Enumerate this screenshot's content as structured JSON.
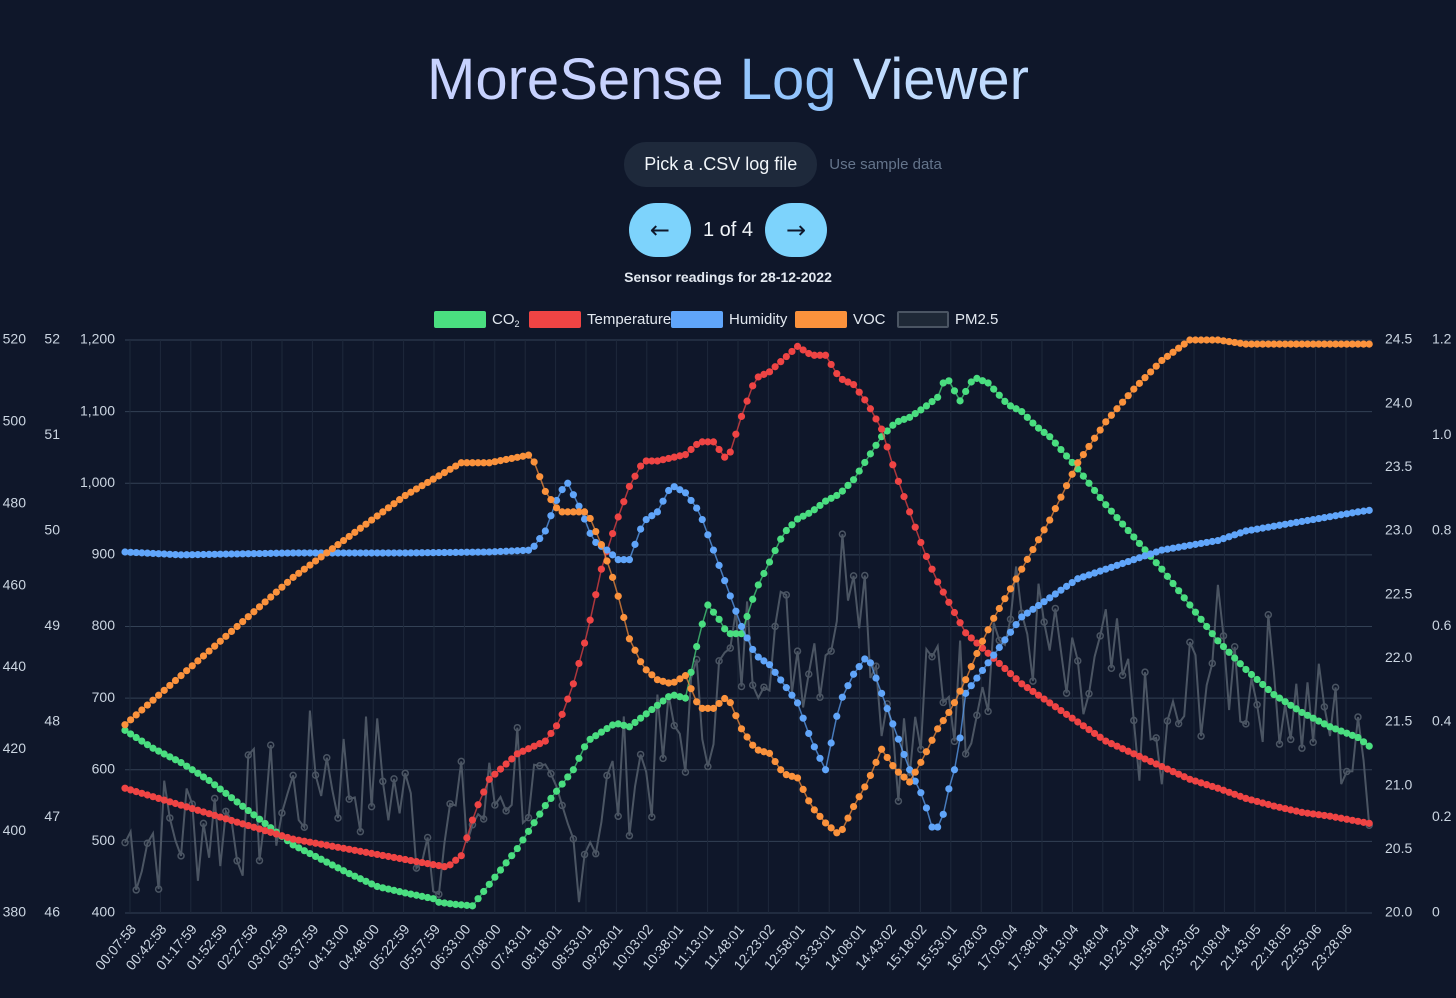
{
  "header": {
    "title_part1": "MoreSense",
    "title_part2": "Log",
    "title_part3": "Viewer"
  },
  "controls": {
    "pick_file_label": "Pick a .CSV log file",
    "sample_label": "Use sample data",
    "prev_label": "←",
    "next_label": "→",
    "page_label": "1 of 4"
  },
  "colors": {
    "background": "#0f172a",
    "co2": "#4ade80",
    "temperature": "#ef4444",
    "humidity": "#60a5fa",
    "voc": "#fb923c",
    "pm25": "#6b7280"
  },
  "chart_data": {
    "type": "line",
    "title": "Sensor readings for 28-12-2022",
    "xlabels": [
      "00:07:58",
      "00:42:58",
      "01:17:59",
      "01:52:59",
      "02:27:58",
      "03:02:59",
      "03:37:59",
      "04:13:00",
      "04:48:00",
      "05:22:59",
      "05:57:59",
      "06:33:00",
      "07:08:00",
      "07:43:01",
      "08:18:01",
      "08:53:01",
      "09:28:01",
      "10:03:02",
      "10:38:01",
      "11:13:01",
      "11:48:01",
      "12:23:02",
      "12:58:01",
      "13:33:01",
      "14:08:01",
      "14:43:02",
      "15:18:02",
      "15:53:01",
      "16:28:03",
      "17:03:04",
      "17:38:04",
      "18:13:04",
      "18:48:04",
      "19:23:04",
      "19:58:04",
      "20:33:05",
      "21:08:04",
      "21:43:05",
      "22:18:05",
      "22:53:06",
      "23:28:06"
    ],
    "legend_position": "top",
    "grid": true,
    "axes": {
      "co2": {
        "position": "left",
        "min": 400,
        "max": 1200,
        "ticks": [
          "400",
          "500",
          "600",
          "700",
          "800",
          "900",
          "1,000",
          "1,100",
          "1,200"
        ]
      },
      "humidity": {
        "position": "left",
        "min": 46,
        "max": 52,
        "ticks": [
          "46",
          "47",
          "48",
          "49",
          "50",
          "51",
          "52"
        ]
      },
      "voc": {
        "position": "left",
        "min": 380,
        "max": 520,
        "ticks": [
          "380",
          "400",
          "420",
          "440",
          "460",
          "480",
          "500",
          "520"
        ]
      },
      "temperature": {
        "position": "right",
        "min": 20.0,
        "max": 24.5,
        "ticks": [
          "20.0",
          "20.5",
          "21.0",
          "21.5",
          "22.0",
          "22.5",
          "23.0",
          "23.5",
          "24.0",
          "24.5"
        ]
      },
      "pm25": {
        "position": "right",
        "min": 0,
        "max": 1.2,
        "ticks": [
          "0",
          "0.2",
          "0.4",
          "0.6",
          "0.8",
          "1.0",
          "1.2"
        ]
      }
    },
    "series": [
      {
        "key": "co2",
        "name": "CO₂",
        "axis": "co2",
        "points": [
          [
            0,
            655
          ],
          [
            10,
            630
          ],
          [
            20,
            610
          ],
          [
            30,
            585
          ],
          [
            40,
            555
          ],
          [
            50,
            525
          ],
          [
            60,
            495
          ],
          [
            70,
            475
          ],
          [
            80,
            455
          ],
          [
            90,
            437
          ],
          [
            100,
            428
          ],
          [
            110,
            420
          ],
          [
            112,
            415
          ],
          [
            118,
            412
          ],
          [
            124,
            410
          ],
          [
            130,
            440
          ],
          [
            140,
            490
          ],
          [
            150,
            550
          ],
          [
            160,
            600
          ],
          [
            165,
            640
          ],
          [
            175,
            665
          ],
          [
            180,
            660
          ],
          [
            190,
            690
          ],
          [
            195,
            705
          ],
          [
            200,
            700
          ],
          [
            205,
            790
          ],
          [
            208,
            830
          ],
          [
            212,
            810
          ],
          [
            215,
            790
          ],
          [
            220,
            790
          ],
          [
            225,
            850
          ],
          [
            230,
            890
          ],
          [
            235,
            930
          ],
          [
            240,
            950
          ],
          [
            245,
            960
          ],
          [
            250,
            975
          ],
          [
            255,
            985
          ],
          [
            260,
            1005
          ],
          [
            265,
            1035
          ],
          [
            270,
            1065
          ],
          [
            275,
            1085
          ],
          [
            280,
            1092
          ],
          [
            285,
            1105
          ],
          [
            290,
            1120
          ],
          [
            293,
            1150
          ],
          [
            298,
            1115
          ],
          [
            303,
            1148
          ],
          [
            308,
            1140
          ],
          [
            315,
            1110
          ],
          [
            320,
            1100
          ],
          [
            325,
            1080
          ],
          [
            330,
            1065
          ],
          [
            340,
            1020
          ],
          [
            350,
            970
          ],
          [
            360,
            925
          ],
          [
            370,
            880
          ],
          [
            380,
            830
          ],
          [
            390,
            780
          ],
          [
            400,
            740
          ],
          [
            410,
            705
          ],
          [
            420,
            680
          ],
          [
            430,
            660
          ],
          [
            440,
            645
          ],
          [
            445,
            630
          ]
        ]
      },
      {
        "key": "temperature",
        "name": "Temperature",
        "axis": "temperature",
        "points": [
          [
            0,
            20.98
          ],
          [
            15,
            20.88
          ],
          [
            30,
            20.78
          ],
          [
            45,
            20.68
          ],
          [
            60,
            20.58
          ],
          [
            75,
            20.52
          ],
          [
            90,
            20.46
          ],
          [
            100,
            20.42
          ],
          [
            110,
            20.38
          ],
          [
            115,
            20.36
          ],
          [
            120,
            20.45
          ],
          [
            125,
            20.8
          ],
          [
            130,
            21.05
          ],
          [
            140,
            21.25
          ],
          [
            150,
            21.35
          ],
          [
            155,
            21.5
          ],
          [
            160,
            21.8
          ],
          [
            165,
            22.2
          ],
          [
            170,
            22.7
          ],
          [
            175,
            23.05
          ],
          [
            180,
            23.35
          ],
          [
            185,
            23.55
          ],
          [
            190,
            23.55
          ],
          [
            200,
            23.6
          ],
          [
            205,
            23.7
          ],
          [
            210,
            23.7
          ],
          [
            215,
            23.55
          ],
          [
            220,
            23.9
          ],
          [
            225,
            24.2
          ],
          [
            230,
            24.25
          ],
          [
            235,
            24.35
          ],
          [
            240,
            24.45
          ],
          [
            245,
            24.38
          ],
          [
            250,
            24.38
          ],
          [
            255,
            24.2
          ],
          [
            260,
            24.15
          ],
          [
            265,
            24.0
          ],
          [
            270,
            23.8
          ],
          [
            275,
            23.45
          ],
          [
            280,
            23.15
          ],
          [
            285,
            22.85
          ],
          [
            290,
            22.6
          ],
          [
            295,
            22.4
          ],
          [
            300,
            22.2
          ],
          [
            310,
            22.0
          ],
          [
            320,
            21.8
          ],
          [
            330,
            21.65
          ],
          [
            340,
            21.5
          ],
          [
            350,
            21.35
          ],
          [
            360,
            21.25
          ],
          [
            370,
            21.15
          ],
          [
            380,
            21.05
          ],
          [
            390,
            20.98
          ],
          [
            400,
            20.9
          ],
          [
            410,
            20.84
          ],
          [
            420,
            20.79
          ],
          [
            430,
            20.76
          ],
          [
            440,
            20.72
          ],
          [
            445,
            20.7
          ]
        ]
      },
      {
        "key": "humidity",
        "name": "Humidity",
        "axis": "humidity",
        "points": [
          [
            0,
            49.78
          ],
          [
            20,
            49.75
          ],
          [
            40,
            49.76
          ],
          [
            60,
            49.77
          ],
          [
            80,
            49.77
          ],
          [
            100,
            49.77
          ],
          [
            130,
            49.78
          ],
          [
            145,
            49.8
          ],
          [
            150,
            50.0
          ],
          [
            155,
            50.4
          ],
          [
            158,
            50.5
          ],
          [
            163,
            50.2
          ],
          [
            167,
            49.9
          ],
          [
            172,
            49.8
          ],
          [
            176,
            49.7
          ],
          [
            180,
            49.7
          ],
          [
            185,
            50.1
          ],
          [
            190,
            50.2
          ],
          [
            195,
            50.48
          ],
          [
            200,
            50.4
          ],
          [
            205,
            50.2
          ],
          [
            210,
            49.8
          ],
          [
            215,
            49.4
          ],
          [
            220,
            49.0
          ],
          [
            225,
            48.7
          ],
          [
            230,
            48.6
          ],
          [
            235,
            48.4
          ],
          [
            240,
            48.2
          ],
          [
            245,
            47.8
          ],
          [
            250,
            47.5
          ],
          [
            255,
            48.2
          ],
          [
            260,
            48.5
          ],
          [
            265,
            48.7
          ],
          [
            270,
            48.3
          ],
          [
            275,
            47.9
          ],
          [
            280,
            47.5
          ],
          [
            285,
            47.2
          ],
          [
            288,
            46.9
          ],
          [
            291,
            46.9
          ],
          [
            294,
            47.3
          ],
          [
            297,
            47.6
          ],
          [
            300,
            48.3
          ],
          [
            305,
            48.5
          ],
          [
            310,
            48.7
          ],
          [
            315,
            48.9
          ],
          [
            320,
            49.1
          ],
          [
            330,
            49.3
          ],
          [
            340,
            49.5
          ],
          [
            350,
            49.6
          ],
          [
            360,
            49.7
          ],
          [
            370,
            49.8
          ],
          [
            380,
            49.85
          ],
          [
            390,
            49.9
          ],
          [
            400,
            50.0
          ],
          [
            410,
            50.05
          ],
          [
            420,
            50.1
          ],
          [
            430,
            50.15
          ],
          [
            440,
            50.2
          ],
          [
            445,
            50.22
          ]
        ]
      },
      {
        "key": "voc",
        "name": "VOC",
        "axis": "voc",
        "points": [
          [
            0,
            426
          ],
          [
            10,
            432
          ],
          [
            20,
            438
          ],
          [
            30,
            444
          ],
          [
            40,
            450
          ],
          [
            50,
            456
          ],
          [
            60,
            462
          ],
          [
            70,
            467
          ],
          [
            80,
            472
          ],
          [
            90,
            477
          ],
          [
            100,
            482
          ],
          [
            110,
            486
          ],
          [
            120,
            490
          ],
          [
            130,
            490
          ],
          [
            145,
            492
          ],
          [
            150,
            483
          ],
          [
            155,
            478
          ],
          [
            160,
            478
          ],
          [
            165,
            478
          ],
          [
            170,
            470
          ],
          [
            175,
            460
          ],
          [
            180,
            447
          ],
          [
            185,
            440
          ],
          [
            190,
            437
          ],
          [
            195,
            436
          ],
          [
            200,
            438
          ],
          [
            205,
            430
          ],
          [
            210,
            430
          ],
          [
            215,
            433
          ],
          [
            220,
            425
          ],
          [
            225,
            420
          ],
          [
            230,
            419
          ],
          [
            235,
            414
          ],
          [
            240,
            413
          ],
          [
            245,
            406
          ],
          [
            250,
            402
          ],
          [
            255,
            399
          ],
          [
            260,
            406
          ],
          [
            265,
            412
          ],
          [
            270,
            420
          ],
          [
            275,
            415
          ],
          [
            280,
            412
          ],
          [
            285,
            418
          ],
          [
            290,
            425
          ],
          [
            295,
            430
          ],
          [
            300,
            437
          ],
          [
            305,
            445
          ],
          [
            310,
            452
          ],
          [
            320,
            464
          ],
          [
            330,
            476
          ],
          [
            340,
            490
          ],
          [
            350,
            500
          ],
          [
            360,
            508
          ],
          [
            370,
            515
          ],
          [
            380,
            520
          ],
          [
            390,
            520
          ],
          [
            400,
            519
          ],
          [
            445,
            519
          ]
        ]
      },
      {
        "key": "pm25",
        "name": "PM2.5",
        "axis": "pm25",
        "points": [
          [
            0,
            0.15
          ],
          [
            20,
            0.18
          ],
          [
            40,
            0.2
          ],
          [
            60,
            0.24
          ],
          [
            70,
            0.32
          ],
          [
            80,
            0.28
          ],
          [
            90,
            0.3
          ],
          [
            100,
            0.22
          ],
          [
            110,
            0.16
          ],
          [
            130,
            0.22
          ],
          [
            140,
            0.32
          ],
          [
            150,
            0.18
          ],
          [
            160,
            0.14
          ],
          [
            170,
            0.22
          ],
          [
            180,
            0.3
          ],
          [
            190,
            0.32
          ],
          [
            200,
            0.4
          ],
          [
            210,
            0.45
          ],
          [
            220,
            0.55
          ],
          [
            230,
            0.6
          ],
          [
            240,
            0.55
          ],
          [
            250,
            0.58
          ],
          [
            260,
            0.8
          ],
          [
            270,
            0.48
          ],
          [
            280,
            0.3
          ],
          [
            290,
            0.52
          ],
          [
            300,
            0.45
          ],
          [
            310,
            0.58
          ],
          [
            320,
            0.62
          ],
          [
            330,
            0.55
          ],
          [
            340,
            0.42
          ],
          [
            350,
            0.52
          ],
          [
            360,
            0.42
          ],
          [
            370,
            0.3
          ],
          [
            380,
            0.46
          ],
          [
            390,
            0.55
          ],
          [
            400,
            0.48
          ],
          [
            410,
            0.5
          ],
          [
            420,
            0.42
          ],
          [
            430,
            0.4
          ],
          [
            440,
            0.3
          ],
          [
            445,
            0.3
          ]
        ]
      }
    ]
  }
}
